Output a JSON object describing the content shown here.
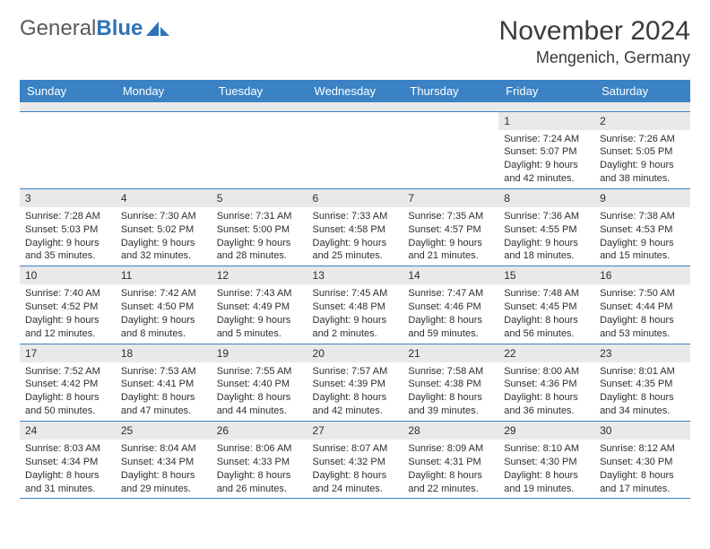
{
  "brand": {
    "part1": "General",
    "part2": "Blue"
  },
  "title": {
    "month": "November 2024",
    "location": "Mengenich, Germany"
  },
  "colors": {
    "header_bg": "#3a82c4",
    "header_text": "#ffffff",
    "daynum_bg": "#e9e9e9",
    "rule": "#3a82c4",
    "text": "#2e2e2e",
    "brand_gray": "#5a5a5a",
    "brand_blue": "#2e74b5"
  },
  "weekdays": [
    "Sunday",
    "Monday",
    "Tuesday",
    "Wednesday",
    "Thursday",
    "Friday",
    "Saturday"
  ],
  "weeks": [
    [
      null,
      null,
      null,
      null,
      null,
      {
        "n": "1",
        "sunrise": "7:24 AM",
        "sunset": "5:07 PM",
        "daylight": "9 hours and 42 minutes."
      },
      {
        "n": "2",
        "sunrise": "7:26 AM",
        "sunset": "5:05 PM",
        "daylight": "9 hours and 38 minutes."
      }
    ],
    [
      {
        "n": "3",
        "sunrise": "7:28 AM",
        "sunset": "5:03 PM",
        "daylight": "9 hours and 35 minutes."
      },
      {
        "n": "4",
        "sunrise": "7:30 AM",
        "sunset": "5:02 PM",
        "daylight": "9 hours and 32 minutes."
      },
      {
        "n": "5",
        "sunrise": "7:31 AM",
        "sunset": "5:00 PM",
        "daylight": "9 hours and 28 minutes."
      },
      {
        "n": "6",
        "sunrise": "7:33 AM",
        "sunset": "4:58 PM",
        "daylight": "9 hours and 25 minutes."
      },
      {
        "n": "7",
        "sunrise": "7:35 AM",
        "sunset": "4:57 PM",
        "daylight": "9 hours and 21 minutes."
      },
      {
        "n": "8",
        "sunrise": "7:36 AM",
        "sunset": "4:55 PM",
        "daylight": "9 hours and 18 minutes."
      },
      {
        "n": "9",
        "sunrise": "7:38 AM",
        "sunset": "4:53 PM",
        "daylight": "9 hours and 15 minutes."
      }
    ],
    [
      {
        "n": "10",
        "sunrise": "7:40 AM",
        "sunset": "4:52 PM",
        "daylight": "9 hours and 12 minutes."
      },
      {
        "n": "11",
        "sunrise": "7:42 AM",
        "sunset": "4:50 PM",
        "daylight": "9 hours and 8 minutes."
      },
      {
        "n": "12",
        "sunrise": "7:43 AM",
        "sunset": "4:49 PM",
        "daylight": "9 hours and 5 minutes."
      },
      {
        "n": "13",
        "sunrise": "7:45 AM",
        "sunset": "4:48 PM",
        "daylight": "9 hours and 2 minutes."
      },
      {
        "n": "14",
        "sunrise": "7:47 AM",
        "sunset": "4:46 PM",
        "daylight": "8 hours and 59 minutes."
      },
      {
        "n": "15",
        "sunrise": "7:48 AM",
        "sunset": "4:45 PM",
        "daylight": "8 hours and 56 minutes."
      },
      {
        "n": "16",
        "sunrise": "7:50 AM",
        "sunset": "4:44 PM",
        "daylight": "8 hours and 53 minutes."
      }
    ],
    [
      {
        "n": "17",
        "sunrise": "7:52 AM",
        "sunset": "4:42 PM",
        "daylight": "8 hours and 50 minutes."
      },
      {
        "n": "18",
        "sunrise": "7:53 AM",
        "sunset": "4:41 PM",
        "daylight": "8 hours and 47 minutes."
      },
      {
        "n": "19",
        "sunrise": "7:55 AM",
        "sunset": "4:40 PM",
        "daylight": "8 hours and 44 minutes."
      },
      {
        "n": "20",
        "sunrise": "7:57 AM",
        "sunset": "4:39 PM",
        "daylight": "8 hours and 42 minutes."
      },
      {
        "n": "21",
        "sunrise": "7:58 AM",
        "sunset": "4:38 PM",
        "daylight": "8 hours and 39 minutes."
      },
      {
        "n": "22",
        "sunrise": "8:00 AM",
        "sunset": "4:36 PM",
        "daylight": "8 hours and 36 minutes."
      },
      {
        "n": "23",
        "sunrise": "8:01 AM",
        "sunset": "4:35 PM",
        "daylight": "8 hours and 34 minutes."
      }
    ],
    [
      {
        "n": "24",
        "sunrise": "8:03 AM",
        "sunset": "4:34 PM",
        "daylight": "8 hours and 31 minutes."
      },
      {
        "n": "25",
        "sunrise": "8:04 AM",
        "sunset": "4:34 PM",
        "daylight": "8 hours and 29 minutes."
      },
      {
        "n": "26",
        "sunrise": "8:06 AM",
        "sunset": "4:33 PM",
        "daylight": "8 hours and 26 minutes."
      },
      {
        "n": "27",
        "sunrise": "8:07 AM",
        "sunset": "4:32 PM",
        "daylight": "8 hours and 24 minutes."
      },
      {
        "n": "28",
        "sunrise": "8:09 AM",
        "sunset": "4:31 PM",
        "daylight": "8 hours and 22 minutes."
      },
      {
        "n": "29",
        "sunrise": "8:10 AM",
        "sunset": "4:30 PM",
        "daylight": "8 hours and 19 minutes."
      },
      {
        "n": "30",
        "sunrise": "8:12 AM",
        "sunset": "4:30 PM",
        "daylight": "8 hours and 17 minutes."
      }
    ]
  ],
  "labels": {
    "sunrise": "Sunrise:",
    "sunset": "Sunset:",
    "daylight": "Daylight:"
  }
}
